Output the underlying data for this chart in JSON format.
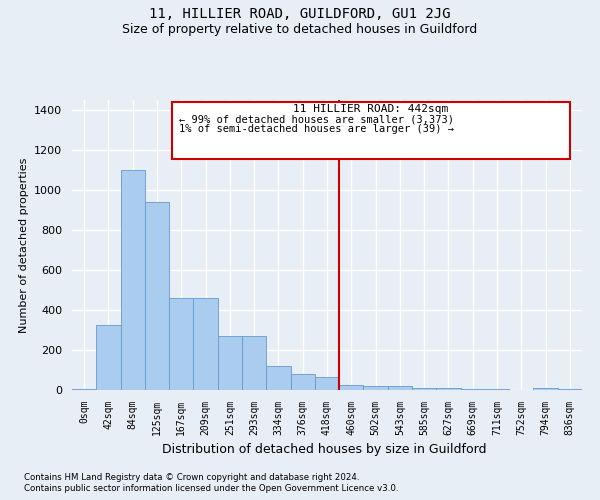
{
  "title": "11, HILLIER ROAD, GUILDFORD, GU1 2JG",
  "subtitle": "Size of property relative to detached houses in Guildford",
  "xlabel": "Distribution of detached houses by size in Guildford",
  "ylabel": "Number of detached properties",
  "footer1": "Contains HM Land Registry data © Crown copyright and database right 2024.",
  "footer2": "Contains public sector information licensed under the Open Government Licence v3.0.",
  "bin_labels": [
    "0sqm",
    "42sqm",
    "84sqm",
    "125sqm",
    "167sqm",
    "209sqm",
    "251sqm",
    "293sqm",
    "334sqm",
    "376sqm",
    "418sqm",
    "460sqm",
    "502sqm",
    "543sqm",
    "585sqm",
    "627sqm",
    "669sqm",
    "711sqm",
    "752sqm",
    "794sqm",
    "836sqm"
  ],
  "bar_values": [
    5,
    325,
    1100,
    940,
    460,
    460,
    270,
    270,
    120,
    80,
    65,
    25,
    20,
    20,
    10,
    8,
    5,
    5,
    0,
    8,
    4
  ],
  "bar_color": "#aaccee",
  "bar_edge_color": "#6699cc",
  "property_line_x": 10.5,
  "annotation_line1": "11 HILLIER ROAD: 442sqm",
  "annotation_line2": "← 99% of detached houses are smaller (3,373)",
  "annotation_line3": "1% of semi-detached houses are larger (39) →",
  "annotation_box_color": "#cc0000",
  "ylim": [
    0,
    1450
  ],
  "yticks": [
    0,
    200,
    400,
    600,
    800,
    1000,
    1200,
    1400
  ],
  "background_color": "#e8eef5",
  "grid_color": "#ffffff",
  "title_fontsize": 10,
  "subtitle_fontsize": 9
}
